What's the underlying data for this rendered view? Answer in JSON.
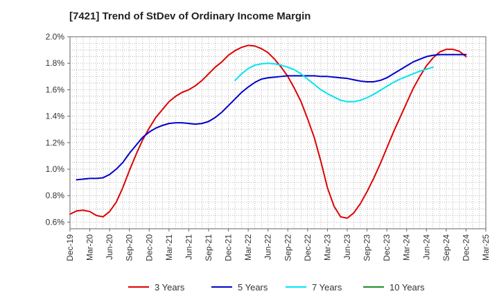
{
  "chart_data": {
    "type": "line",
    "title": "[7421]  Trend of StDev of Ordinary Income Margin",
    "xlabel": "",
    "ylabel": "",
    "x_tick_labels": [
      "Dec-19",
      "Mar-20",
      "Jun-20",
      "Sep-20",
      "Dec-20",
      "Mar-21",
      "Jun-21",
      "Sep-21",
      "Dec-21",
      "Mar-22",
      "Jun-22",
      "Sep-22",
      "Dec-22",
      "Mar-23",
      "Jun-23",
      "Sep-23",
      "Dec-23",
      "Mar-24",
      "Jun-24",
      "Sep-24",
      "Dec-24",
      "Mar-25"
    ],
    "y_ticks": [
      0.6,
      0.8,
      1.0,
      1.2,
      1.4,
      1.6,
      1.8,
      2.0
    ],
    "y_tick_labels": [
      "0.6%",
      "0.8%",
      "1.0%",
      "1.2%",
      "1.4%",
      "1.6%",
      "1.8%",
      "2.0%"
    ],
    "ylim": [
      0.55,
      2.0
    ],
    "grid": true,
    "legend_position": "bottom",
    "series": [
      {
        "name": "3 Years",
        "color": "#dd0000",
        "start_index": 0,
        "values": [
          0.66,
          0.685,
          0.69,
          0.68,
          0.65,
          0.64,
          0.68,
          0.75,
          0.86,
          0.99,
          1.11,
          1.22,
          1.31,
          1.39,
          1.45,
          1.51,
          1.55,
          1.58,
          1.6,
          1.63,
          1.67,
          1.72,
          1.77,
          1.81,
          1.86,
          1.895,
          1.92,
          1.935,
          1.93,
          1.91,
          1.88,
          1.83,
          1.77,
          1.7,
          1.61,
          1.51,
          1.38,
          1.24,
          1.06,
          0.86,
          0.72,
          0.64,
          0.63,
          0.67,
          0.74,
          0.83,
          0.93,
          1.04,
          1.16,
          1.28,
          1.39,
          1.5,
          1.61,
          1.7,
          1.78,
          1.84,
          1.885,
          1.905,
          1.905,
          1.89,
          1.85
        ]
      },
      {
        "name": "5 Years",
        "color": "#0000cc",
        "start_index": 1,
        "values": [
          0.92,
          0.925,
          0.93,
          0.93,
          0.935,
          0.96,
          1.0,
          1.05,
          1.12,
          1.18,
          1.24,
          1.28,
          1.31,
          1.33,
          1.345,
          1.35,
          1.35,
          1.345,
          1.34,
          1.345,
          1.36,
          1.39,
          1.43,
          1.48,
          1.53,
          1.58,
          1.62,
          1.655,
          1.68,
          1.69,
          1.695,
          1.7,
          1.705,
          1.705,
          1.705,
          1.705,
          1.705,
          1.7,
          1.7,
          1.695,
          1.69,
          1.685,
          1.675,
          1.665,
          1.66,
          1.66,
          1.67,
          1.69,
          1.72,
          1.75,
          1.78,
          1.81,
          1.83,
          1.85,
          1.86,
          1.865,
          1.865,
          1.865,
          1.865,
          1.865
        ]
      },
      {
        "name": "7 Years",
        "color": "#00e5ee",
        "start_index": 25,
        "values": [
          1.67,
          1.72,
          1.76,
          1.785,
          1.795,
          1.8,
          1.795,
          1.785,
          1.77,
          1.75,
          1.72,
          1.68,
          1.64,
          1.6,
          1.57,
          1.545,
          1.52,
          1.51,
          1.51,
          1.52,
          1.54,
          1.565,
          1.595,
          1.625,
          1.655,
          1.68,
          1.7,
          1.72,
          1.74,
          1.755,
          1.77
        ]
      },
      {
        "name": "10 Years",
        "color": "#228b22",
        "start_index": 0,
        "values": []
      }
    ]
  }
}
